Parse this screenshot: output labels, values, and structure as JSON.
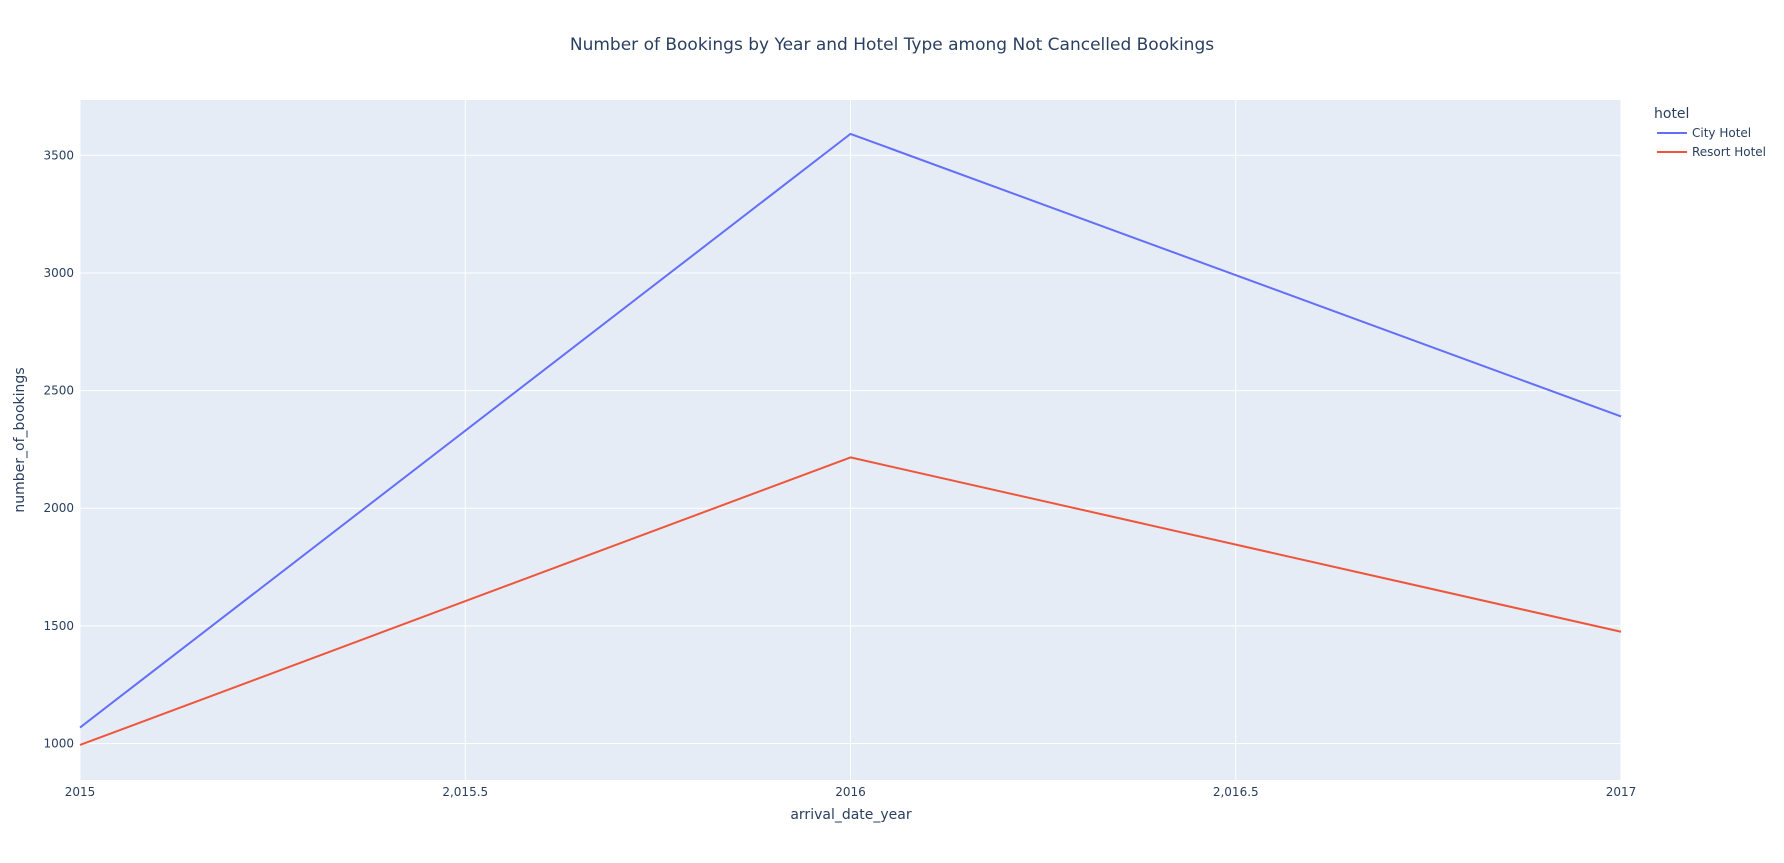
{
  "chart_data": {
    "type": "line",
    "title": "Number of Bookings by Year and Hotel Type among Not Cancelled Bookings",
    "xlabel": "arrival_date_year",
    "ylabel": "number_of_bookings",
    "x": [
      2015,
      2016,
      2017
    ],
    "xlim": [
      2015,
      2017
    ],
    "ylim": [
      845,
      3735
    ],
    "x_ticks": [
      {
        "value": 2015,
        "label": "2015"
      },
      {
        "value": 2015.5,
        "label": "2,015.5"
      },
      {
        "value": 2016,
        "label": "2016"
      },
      {
        "value": 2016.5,
        "label": "2,016.5"
      },
      {
        "value": 2017,
        "label": "2017"
      }
    ],
    "y_ticks": [
      {
        "value": 1000,
        "label": "1000"
      },
      {
        "value": 1500,
        "label": "1500"
      },
      {
        "value": 2000,
        "label": "2000"
      },
      {
        "value": 2500,
        "label": "2500"
      },
      {
        "value": 3000,
        "label": "3000"
      },
      {
        "value": 3500,
        "label": "3500"
      }
    ],
    "legend_title": "hotel",
    "legend_position": "top-right, outside plot",
    "grid": true,
    "plot_background": "#e5ecf6",
    "grid_color": "#ffffff",
    "series": [
      {
        "name": "City Hotel",
        "color": "#636efa",
        "values": [
          1068,
          3591,
          2390
        ]
      },
      {
        "name": "Resort Hotel",
        "color": "#ef553b",
        "values": [
          994,
          2216,
          1475
        ]
      }
    ]
  }
}
